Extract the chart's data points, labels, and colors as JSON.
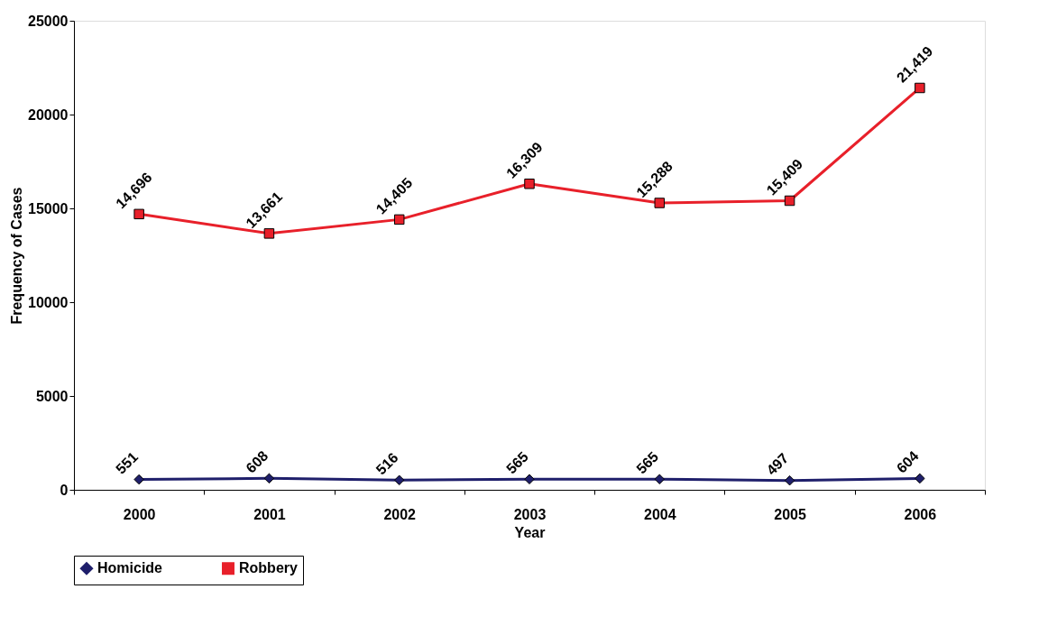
{
  "chart_data": {
    "type": "line",
    "xlabel": "Year",
    "ylabel": "Frequency of Cases",
    "categories": [
      "2000",
      "2001",
      "2002",
      "2003",
      "2004",
      "2005",
      "2006"
    ],
    "series": [
      {
        "name": "Homicide",
        "color": "#1f1f6b",
        "marker": "diamond",
        "values": [
          551,
          608,
          516,
          565,
          565,
          497,
          604
        ],
        "value_labels": [
          "551",
          "608",
          "516",
          "565",
          "565",
          "497",
          "604"
        ]
      },
      {
        "name": "Robbery",
        "color": "#e8202a",
        "marker": "square",
        "values": [
          14696,
          13661,
          14405,
          16309,
          15288,
          15409,
          21419
        ],
        "value_labels": [
          "14,696",
          "13,661",
          "14,405",
          "16,309",
          "15,288",
          "15,409",
          "21,419"
        ]
      }
    ],
    "ylim": [
      0,
      25000
    ],
    "yticks": [
      0,
      5000,
      10000,
      15000,
      20000,
      25000
    ],
    "grid": false,
    "legend": "bottom",
    "line_style": "solid"
  }
}
